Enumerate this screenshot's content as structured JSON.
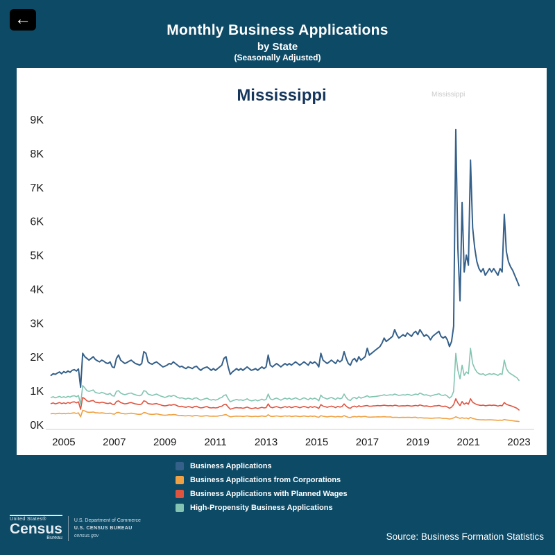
{
  "header": {
    "back_label": "←",
    "title": "Monthly Business Applications",
    "subtitle": "by State",
    "season_note": "(Seasonally Adjusted)"
  },
  "colors": {
    "background": "#0d4a66",
    "panel": "#ffffff",
    "state_title": "#16365c",
    "series_navy": "#35608a",
    "series_orange": "#efa143",
    "series_red": "#e0533f",
    "series_teal": "#82c4b1"
  },
  "faint_label": "Mississippi",
  "chart_data": {
    "type": "line",
    "title": "Mississippi",
    "x_start": "2004-07",
    "x_frequency": "monthly",
    "x_range": [
      2004.4,
      2023.6
    ],
    "ylim": [
      0,
      9000
    ],
    "y_tick_labels": [
      "0K",
      "1K",
      "2K",
      "3K",
      "4K",
      "5K",
      "6K",
      "7K",
      "8K",
      "9K"
    ],
    "x_tick_years": [
      2005,
      2007,
      2009,
      2011,
      2013,
      2015,
      2017,
      2019,
      2021,
      2023
    ],
    "legend_position": "bottom",
    "grid": false,
    "series": [
      {
        "name": "Business Applications",
        "color": "#35608a",
        "values": [
          1450,
          1500,
          1480,
          1520,
          1550,
          1500,
          1560,
          1530,
          1580,
          1540,
          1600,
          1620,
          1580,
          1640,
          1100,
          2100,
          2000,
          1950,
          1900,
          1950,
          2000,
          1920,
          1880,
          1850,
          1900,
          1870,
          1820,
          1800,
          1850,
          1700,
          1680,
          1950,
          2050,
          1900,
          1850,
          1800,
          1830,
          1870,
          1900,
          1850,
          1800,
          1780,
          1750,
          1800,
          2150,
          2100,
          1850,
          1800,
          1780,
          1820,
          1850,
          1800,
          1750,
          1700,
          1720,
          1750,
          1800,
          1780,
          1850,
          1800,
          1750,
          1700,
          1720,
          1680,
          1650,
          1700,
          1680,
          1650,
          1700,
          1720,
          1650,
          1600,
          1650,
          1680,
          1700,
          1650,
          1600,
          1650,
          1600,
          1650,
          1700,
          1750,
          1950,
          2000,
          1700,
          1480,
          1550,
          1600,
          1650,
          1600,
          1650,
          1600,
          1650,
          1700,
          1650,
          1600,
          1620,
          1650,
          1600,
          1650,
          1700,
          1650,
          1700,
          2050,
          1750,
          1700,
          1750,
          1800,
          1750,
          1700,
          1750,
          1800,
          1750,
          1800,
          1750,
          1800,
          1850,
          1800,
          1750,
          1800,
          1850,
          1800,
          1750,
          1850,
          1800,
          1850,
          1800,
          1700,
          2100,
          1900,
          1850,
          1800,
          1850,
          1900,
          1850,
          1800,
          1900,
          1850,
          1900,
          2150,
          1950,
          1800,
          1750,
          1900,
          1950,
          1850,
          2000,
          1900,
          1950,
          2000,
          2250,
          2050,
          2100,
          2150,
          2200,
          2250,
          2300,
          2400,
          2550,
          2450,
          2500,
          2550,
          2600,
          2800,
          2650,
          2550,
          2600,
          2650,
          2600,
          2700,
          2650,
          2600,
          2700,
          2750,
          2650,
          2800,
          2700,
          2600,
          2650,
          2600,
          2500,
          2600,
          2650,
          2700,
          2750,
          2600,
          2550,
          2600,
          2500,
          2300,
          2450,
          2900,
          8700,
          5200,
          3650,
          6550,
          4500,
          5000,
          4700,
          7800,
          5800,
          5200,
          4800,
          4600,
          4500,
          4600,
          4400,
          4500,
          4600,
          4500,
          4600,
          4500,
          4400,
          4600,
          4500,
          6200,
          5100,
          4800,
          4650,
          4550,
          4400,
          4250,
          4100
        ]
      },
      {
        "name": "Business Applications from Corporations",
        "color": "#efa143",
        "values": [
          320,
          330,
          315,
          325,
          335,
          320,
          330,
          320,
          335,
          325,
          340,
          345,
          330,
          345,
          230,
          420,
          400,
          370,
          360,
          365,
          370,
          350,
          345,
          340,
          345,
          340,
          330,
          325,
          335,
          315,
          305,
          350,
          360,
          335,
          325,
          315,
          320,
          330,
          335,
          325,
          315,
          305,
          300,
          310,
          355,
          345,
          315,
          305,
          300,
          305,
          315,
          305,
          290,
          280,
          275,
          280,
          290,
          285,
          295,
          290,
          275,
          265,
          270,
          260,
          255,
          265,
          260,
          250,
          262,
          268,
          255,
          245,
          250,
          258,
          262,
          250,
          245,
          250,
          245,
          250,
          262,
          268,
          285,
          295,
          258,
          230,
          235,
          245,
          250,
          245,
          246,
          239,
          246,
          255,
          244,
          237,
          239,
          246,
          237,
          244,
          253,
          244,
          242,
          290,
          248,
          239,
          248,
          255,
          246,
          237,
          246,
          255,
          246,
          255,
          238,
          244,
          254,
          244,
          235,
          244,
          254,
          244,
          235,
          251,
          242,
          251,
          228,
          215,
          264,
          246,
          237,
          228,
          237,
          246,
          234,
          224,
          240,
          231,
          230,
          264,
          237,
          215,
          209,
          230,
          237,
          224,
          241,
          230,
          237,
          241,
          225,
          218,
          221,
          223,
          225,
          229,
          227,
          229,
          233,
          227,
          225,
          227,
          210,
          212,
          214,
          208,
          210,
          212,
          210,
          214,
          212,
          208,
          212,
          216,
          195,
          204,
          198,
          193,
          195,
          191,
          186,
          189,
          193,
          195,
          198,
          193,
          180,
          185,
          176,
          163,
          173,
          197,
          230,
          205,
          185,
          200,
          185,
          195,
          170,
          210,
          180,
          165,
          150,
          145,
          140,
          142,
          137,
          139,
          142,
          139,
          135,
          130,
          125,
          130,
          125,
          150,
          138,
          128,
          120,
          112,
          105,
          98,
          90
        ]
      },
      {
        "name": "Business Applications with Planned Wages",
        "color": "#e0533f",
        "values": [
          620,
          640,
          610,
          630,
          650,
          620,
          640,
          620,
          650,
          630,
          660,
          670,
          640,
          670,
          450,
          800,
          760,
          700,
          680,
          700,
          710,
          660,
          650,
          640,
          660,
          650,
          630,
          620,
          640,
          600,
          590,
          680,
          700,
          650,
          630,
          610,
          620,
          640,
          650,
          630,
          610,
          600,
          590,
          610,
          700,
          680,
          620,
          610,
          600,
          610,
          620,
          600,
          580,
          560,
          550,
          560,
          580,
          570,
          590,
          580,
          550,
          530,
          540,
          520,
          510,
          530,
          520,
          500,
          530,
          540,
          510,
          490,
          500,
          520,
          530,
          500,
          490,
          500,
          490,
          500,
          530,
          540,
          590,
          600,
          520,
          455,
          470,
          490,
          500,
          490,
          495,
          480,
          495,
          515,
          490,
          475,
          480,
          495,
          475,
          490,
          510,
          490,
          500,
          610,
          515,
          495,
          515,
          530,
          510,
          490,
          510,
          530,
          510,
          530,
          500,
          515,
          535,
          515,
          495,
          515,
          535,
          515,
          495,
          530,
          510,
          530,
          510,
          475,
          590,
          545,
          530,
          510,
          530,
          545,
          525,
          500,
          535,
          515,
          530,
          610,
          545,
          495,
          480,
          530,
          545,
          515,
          555,
          530,
          545,
          555,
          560,
          540,
          545,
          550,
          555,
          560,
          555,
          560,
          570,
          560,
          555,
          560,
          550,
          570,
          560,
          545,
          550,
          555,
          550,
          560,
          555,
          545,
          555,
          565,
          550,
          580,
          560,
          545,
          550,
          540,
          525,
          540,
          550,
          555,
          565,
          545,
          535,
          545,
          520,
          480,
          515,
          590,
          760,
          640,
          560,
          680,
          600,
          640,
          600,
          760,
          660,
          620,
          590,
          575,
          565,
          575,
          555,
          565,
          575,
          565,
          575,
          565,
          545,
          565,
          555,
          650,
          600,
          575,
          555,
          535,
          510,
          480,
          430
        ]
      },
      {
        "name": "High-Propensity Business Applications",
        "color": "#82c4b1",
        "values": [
          800,
          820,
          790,
          810,
          830,
          800,
          820,
          800,
          830,
          810,
          840,
          850,
          820,
          860,
          600,
          1150,
          1080,
          1000,
          980,
          1000,
          1020,
          950,
          930,
          920,
          950,
          930,
          900,
          890,
          920,
          850,
          840,
          980,
          1000,
          930,
          900,
          880,
          900,
          920,
          930,
          900,
          880,
          860,
          850,
          880,
          1000,
          980,
          900,
          880,
          860,
          880,
          900,
          870,
          840,
          820,
          800,
          820,
          850,
          830,
          860,
          840,
          800,
          780,
          790,
          770,
          750,
          780,
          760,
          740,
          780,
          790,
          750,
          720,
          740,
          760,
          780,
          740,
          720,
          740,
          720,
          740,
          780,
          800,
          860,
          880,
          760,
          670,
          700,
          720,
          740,
          720,
          730,
          710,
          730,
          760,
          720,
          700,
          710,
          730,
          700,
          720,
          750,
          720,
          740,
          900,
          760,
          730,
          760,
          780,
          750,
          720,
          750,
          780,
          750,
          780,
          740,
          760,
          790,
          760,
          730,
          760,
          790,
          760,
          730,
          780,
          750,
          780,
          750,
          700,
          870,
          800,
          780,
          750,
          780,
          800,
          770,
          740,
          790,
          760,
          780,
          900,
          800,
          730,
          710,
          780,
          800,
          760,
          820,
          780,
          800,
          820,
          850,
          810,
          820,
          825,
          830,
          840,
          850,
          860,
          880,
          860,
          870,
          880,
          870,
          900,
          880,
          860,
          870,
          880,
          870,
          890,
          880,
          860,
          880,
          900,
          880,
          930,
          900,
          870,
          880,
          860,
          840,
          860,
          880,
          890,
          910,
          870,
          860,
          880,
          840,
          780,
          830,
          980,
          2100,
          1600,
          1350,
          1750,
          1450,
          1550,
          1500,
          2250,
          1800,
          1650,
          1550,
          1500,
          1480,
          1500,
          1450,
          1480,
          1500,
          1480,
          1500,
          1480,
          1450,
          1500,
          1480,
          1900,
          1650,
          1550,
          1500,
          1460,
          1420,
          1380,
          1300
        ]
      }
    ]
  },
  "footer": {
    "logo": {
      "united_states": "United States®",
      "census": "Census",
      "bureau": "Bureau",
      "dept_line1": "U.S. Department of Commerce",
      "dept_line2": "U.S. CENSUS BUREAU",
      "dept_line3": "census.gov"
    },
    "source": "Source: Business Formation Statistics"
  }
}
